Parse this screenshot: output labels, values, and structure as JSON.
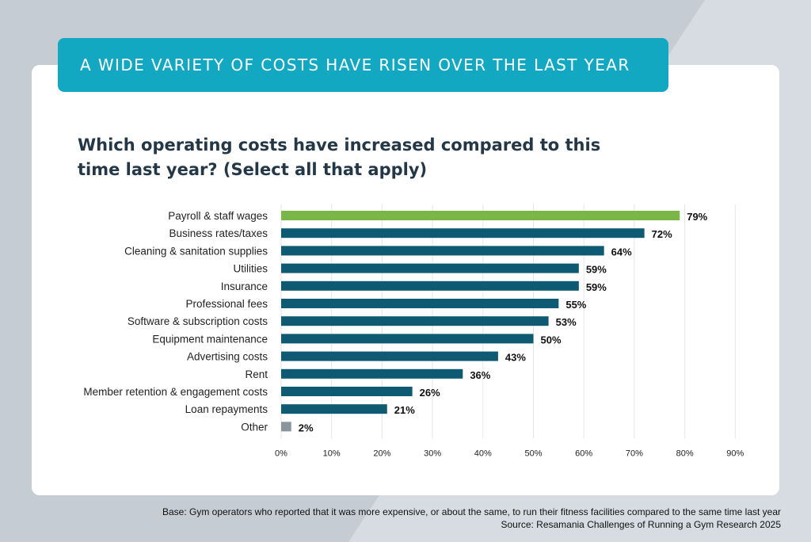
{
  "banner": {
    "title": "A WIDE VARIETY OF COSTS HAVE RISEN OVER THE LAST YEAR"
  },
  "question": "Which operating costs have increased compared to this time last year? (Select all that apply)",
  "footnote": {
    "base": "Base: Gym operators who reported that it was more expensive, or about the same, to run their fitness facilities compared to the same time last year",
    "source": "Source: Resamania Challenges of Running a Gym Research 2025"
  },
  "colors": {
    "highlight": "#7ab648",
    "bar": "#0e5a73",
    "other": "#8a949c",
    "banner": "#13a8c1",
    "grid": "#e6e6e6"
  },
  "chart_data": {
    "type": "bar",
    "orientation": "horizontal",
    "categories": [
      "Payroll & staff wages",
      "Business rates/taxes",
      "Cleaning & sanitation supplies",
      "Utilities",
      "Insurance",
      "Professional fees",
      "Software & subscription costs",
      "Equipment maintenance",
      "Advertising costs",
      "Rent",
      "Member retention & engagement costs",
      "Loan repayments",
      "Other"
    ],
    "values": [
      79,
      72,
      64,
      59,
      59,
      55,
      53,
      50,
      43,
      36,
      26,
      21,
      2
    ],
    "data_labels": [
      "79%",
      "72%",
      "64%",
      "59%",
      "59%",
      "55%",
      "53%",
      "50%",
      "43%",
      "36%",
      "26%",
      "21%",
      "2%"
    ],
    "bar_colors": [
      "highlight",
      "bar",
      "bar",
      "bar",
      "bar",
      "bar",
      "bar",
      "bar",
      "bar",
      "bar",
      "bar",
      "bar",
      "other"
    ],
    "xlim": [
      0,
      90
    ],
    "xticks": [
      0,
      10,
      20,
      30,
      40,
      50,
      60,
      70,
      80,
      90
    ],
    "xtick_labels": [
      "0%",
      "10%",
      "20%",
      "30%",
      "40%",
      "50%",
      "60%",
      "70%",
      "80%",
      "90%"
    ],
    "grid": true,
    "legend": "none"
  }
}
